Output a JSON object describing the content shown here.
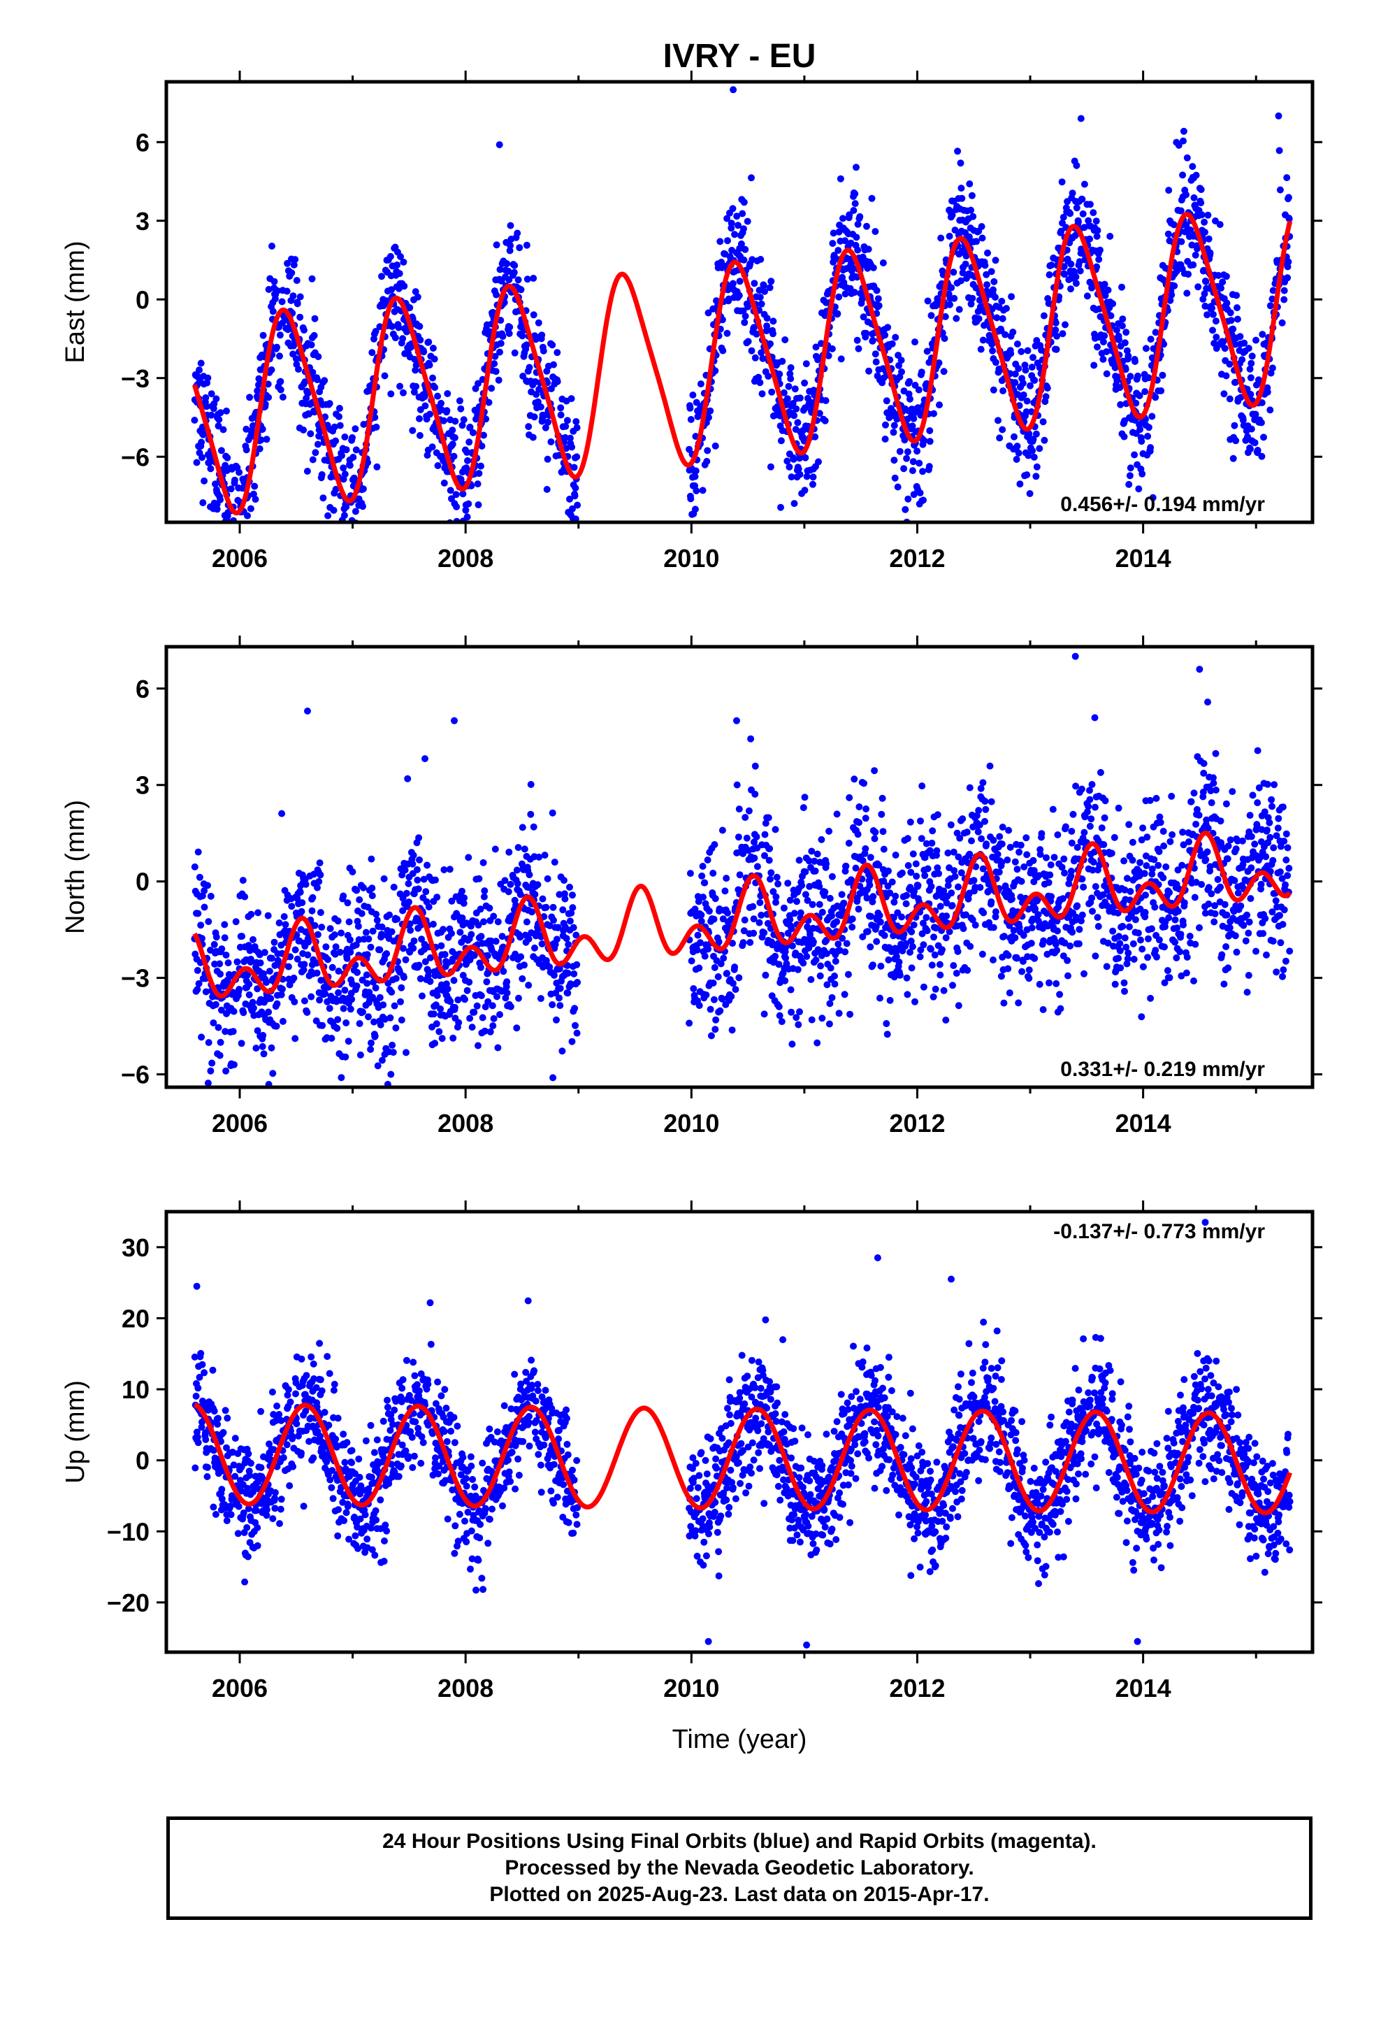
{
  "figure": {
    "title": "IVRY - EU",
    "xlabel": "Time (year)",
    "footer_lines": [
      "24 Hour Positions Using Final Orbits (blue) and Rapid Orbits (magenta).",
      "Processed by the Nevada Geodetic Laboratory.",
      "Plotted on 2025-Aug-23. Last data on 2015-Apr-17."
    ],
    "colors": {
      "points": "#0000ff",
      "model": "#ff0000",
      "frame": "#000000"
    }
  },
  "chart_data": [
    {
      "type": "scatter",
      "name": "east",
      "ylabel": "East (mm)",
      "rate": "0.456+/- 0.194 mm/yr",
      "rate_position": "bottom-right",
      "xlim": [
        2005.35,
        2015.5
      ],
      "ylim": [
        -8.5,
        8.3
      ],
      "x_ticks": [
        2006,
        2008,
        2010,
        2012,
        2014
      ],
      "x_tick_labels": [
        "2006",
        "2008",
        "2010",
        "2012",
        "2014"
      ],
      "y_ticks": [
        -6,
        -3,
        0,
        3,
        6
      ],
      "y_tick_labels": [
        "−6",
        "−3",
        "0",
        "3",
        "6"
      ],
      "series": [
        {
          "kind": "points",
          "color": "#0000ff",
          "segments": [
            [
              2005.6,
              2008.99
            ],
            [
              2009.98,
              2015.3
            ]
          ],
          "trend_mm_per_yr": 0.456,
          "offset": -2.5,
          "annual_amp": 3.6,
          "annual_peak": 2006.43,
          "semiannual_amp": 0.6,
          "semiannual_peak": 2006.3,
          "scatter_sd": 1.3,
          "outliers": [
            [
              2010.37,
              8.0
            ],
            [
              2008.3,
              5.9
            ],
            [
              2005.8,
              -8.0
            ],
            [
              2013.45,
              6.9
            ],
            [
              2015.2,
              7.0
            ]
          ]
        },
        {
          "kind": "model",
          "color": "#ff0000",
          "range": [
            2005.6,
            2015.3
          ],
          "trend_mm_per_yr": 0.456,
          "offset": -2.5,
          "annual_amp": 3.6,
          "annual_peak": 2006.43,
          "semiannual_amp": 0.6,
          "semiannual_peak": 2006.3
        }
      ]
    },
    {
      "type": "scatter",
      "name": "north",
      "ylabel": "North (mm)",
      "rate": "0.331+/- 0.219 mm/yr",
      "rate_position": "bottom-right",
      "xlim": [
        2005.35,
        2015.5
      ],
      "ylim": [
        -6.4,
        7.3
      ],
      "x_ticks": [
        2006,
        2008,
        2010,
        2012,
        2014
      ],
      "x_tick_labels": [
        "2006",
        "2008",
        "2010",
        "2012",
        "2014"
      ],
      "y_ticks": [
        -6,
        -3,
        0,
        3,
        6
      ],
      "y_tick_labels": [
        "−6",
        "−3",
        "0",
        "3",
        "6"
      ],
      "series": [
        {
          "kind": "points",
          "color": "#0000ff",
          "segments": [
            [
              2005.6,
              2008.99
            ],
            [
              2009.98,
              2015.3
            ]
          ],
          "trend_mm_per_yr": 0.331,
          "offset": -1.4,
          "annual_amp": 0.7,
          "annual_peak": 2006.55,
          "semiannual_amp": 0.7,
          "semiannual_peak": 2006.55,
          "scatter_sd": 1.35,
          "outliers": [
            [
              2013.4,
              7.0
            ],
            [
              2006.6,
              5.3
            ],
            [
              2007.9,
              5.0
            ],
            [
              2005.95,
              -5.7
            ],
            [
              2006.9,
              -6.1
            ],
            [
              2014.5,
              6.6
            ],
            [
              2010.4,
              5.0
            ]
          ]
        },
        {
          "kind": "model",
          "color": "#ff0000",
          "range": [
            2005.6,
            2015.3
          ],
          "trend_mm_per_yr": 0.331,
          "offset": -1.4,
          "annual_amp": 0.7,
          "annual_peak": 2006.55,
          "semiannual_amp": 0.7,
          "semiannual_peak": 2006.55
        }
      ]
    },
    {
      "type": "scatter",
      "name": "up",
      "ylabel": "Up (mm)",
      "rate": "-0.137+/- 0.773 mm/yr",
      "rate_position": "top-right",
      "xlim": [
        2005.35,
        2015.5
      ],
      "ylim": [
        -27,
        35
      ],
      "x_ticks": [
        2006,
        2008,
        2010,
        2012,
        2014
      ],
      "x_tick_labels": [
        "2006",
        "2008",
        "2010",
        "2012",
        "2014"
      ],
      "y_ticks": [
        -20,
        -10,
        0,
        10,
        20,
        30
      ],
      "y_tick_labels": [
        "−20",
        "−10",
        "0",
        "10",
        "20",
        "30"
      ],
      "series": [
        {
          "kind": "points",
          "color": "#0000ff",
          "segments": [
            [
              2005.6,
              2008.99
            ],
            [
              2009.98,
              2015.3
            ]
          ],
          "trend_mm_per_yr": -0.137,
          "offset": 0.3,
          "annual_amp": 7.0,
          "annual_peak": 2006.58,
          "semiannual_amp": 0.0,
          "semiannual_peak": 2006.5,
          "scatter_sd": 4.2,
          "outliers": [
            [
              2005.62,
              24.5
            ],
            [
              2014.55,
              33.5
            ],
            [
              2011.65,
              28.5
            ],
            [
              2010.15,
              -25.5
            ],
            [
              2011.02,
              -26.0
            ],
            [
              2013.95,
              -25.5
            ],
            [
              2012.3,
              25.5
            ]
          ]
        },
        {
          "kind": "model",
          "color": "#ff0000",
          "range": [
            2005.6,
            2015.3
          ],
          "trend_mm_per_yr": -0.137,
          "offset": 0.3,
          "annual_amp": 7.0,
          "annual_peak": 2006.58,
          "semiannual_amp": 0.0,
          "semiannual_peak": 2006.5
        }
      ]
    }
  ]
}
